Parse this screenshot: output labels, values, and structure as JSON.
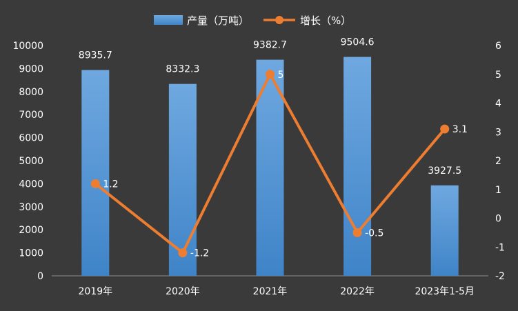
{
  "chart_data": {
    "type": "bar+line",
    "categories": [
      "2019年",
      "2020年",
      "2021年",
      "2022年",
      "2023年1-5月"
    ],
    "series": [
      {
        "name": "产量（万吨）",
        "type": "bar",
        "axis": "left",
        "values": [
          8935.7,
          8332.3,
          9382.7,
          9504.6,
          3927.5
        ],
        "labels": [
          "8935.7",
          "8332.3",
          "9382.7",
          "9504.6",
          "3927.5"
        ],
        "color": "#5b9bd5"
      },
      {
        "name": "增长（%）",
        "type": "line",
        "axis": "right",
        "values": [
          1.2,
          -1.2,
          5,
          -0.5,
          3.1
        ],
        "labels": [
          "1.2",
          "-1.2",
          "5",
          "-0.5",
          "3.1"
        ],
        "color": "#ed7d31"
      }
    ],
    "y_left": {
      "min": 0,
      "max": 10000,
      "step": 1000,
      "ticks": [
        "0",
        "1000",
        "2000",
        "3000",
        "4000",
        "5000",
        "6000",
        "7000",
        "8000",
        "9000",
        "10000"
      ]
    },
    "y_right": {
      "min": -2,
      "max": 6,
      "step": 1,
      "ticks": [
        "-2",
        "-1",
        "0",
        "1",
        "2",
        "3",
        "4",
        "5",
        "6"
      ]
    },
    "legend_position": "top-center",
    "grid": false
  }
}
